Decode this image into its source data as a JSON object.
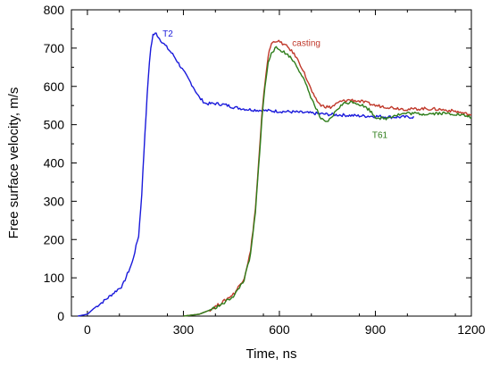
{
  "chart_data": {
    "type": "line",
    "xlabel": "Time, ns",
    "ylabel": "Free surface velocity, m/s",
    "xlim": [
      -50,
      1200
    ],
    "ylim": [
      0,
      800
    ],
    "xticks": [
      0,
      300,
      600,
      900,
      1200
    ],
    "yticks": [
      0,
      100,
      200,
      300,
      400,
      500,
      600,
      700,
      800
    ],
    "grid": false,
    "series": [
      {
        "name": "T2",
        "color": "#1a1adb",
        "points": [
          [
            -30,
            0
          ],
          [
            0,
            5
          ],
          [
            20,
            20
          ],
          [
            60,
            45
          ],
          [
            110,
            80
          ],
          [
            140,
            140
          ],
          [
            160,
            210
          ],
          [
            170,
            320
          ],
          [
            180,
            480
          ],
          [
            190,
            620
          ],
          [
            198,
            700
          ],
          [
            205,
            735
          ],
          [
            215,
            738
          ],
          [
            225,
            725
          ],
          [
            240,
            710
          ],
          [
            270,
            680
          ],
          [
            300,
            640
          ],
          [
            330,
            600
          ],
          [
            350,
            570
          ],
          [
            370,
            555
          ],
          [
            400,
            555
          ],
          [
            430,
            552
          ],
          [
            460,
            545
          ],
          [
            500,
            540
          ],
          [
            550,
            537
          ],
          [
            600,
            535
          ],
          [
            650,
            533
          ],
          [
            700,
            530
          ],
          [
            750,
            527
          ],
          [
            800,
            525
          ],
          [
            850,
            523
          ],
          [
            900,
            522
          ],
          [
            950,
            520
          ],
          [
            1000,
            520
          ],
          [
            1020,
            520
          ]
        ]
      },
      {
        "name": "casting",
        "color": "#c0392b",
        "points": [
          [
            300,
            0
          ],
          [
            350,
            5
          ],
          [
            380,
            15
          ],
          [
            420,
            35
          ],
          [
            460,
            60
          ],
          [
            490,
            100
          ],
          [
            510,
            170
          ],
          [
            525,
            280
          ],
          [
            535,
            400
          ],
          [
            545,
            520
          ],
          [
            555,
            610
          ],
          [
            565,
            680
          ],
          [
            575,
            712
          ],
          [
            590,
            720
          ],
          [
            610,
            712
          ],
          [
            630,
            700
          ],
          [
            650,
            680
          ],
          [
            670,
            650
          ],
          [
            690,
            610
          ],
          [
            710,
            570
          ],
          [
            730,
            550
          ],
          [
            760,
            545
          ],
          [
            790,
            560
          ],
          [
            820,
            565
          ],
          [
            860,
            560
          ],
          [
            900,
            550
          ],
          [
            950,
            545
          ],
          [
            1000,
            540
          ],
          [
            1050,
            542
          ],
          [
            1100,
            540
          ],
          [
            1150,
            535
          ],
          [
            1200,
            525
          ]
        ]
      },
      {
        "name": "T61",
        "color": "#2e7d1a",
        "points": [
          [
            300,
            0
          ],
          [
            350,
            5
          ],
          [
            380,
            15
          ],
          [
            420,
            30
          ],
          [
            460,
            55
          ],
          [
            490,
            95
          ],
          [
            510,
            160
          ],
          [
            525,
            270
          ],
          [
            535,
            390
          ],
          [
            545,
            510
          ],
          [
            555,
            600
          ],
          [
            565,
            660
          ],
          [
            575,
            690
          ],
          [
            590,
            700
          ],
          [
            610,
            692
          ],
          [
            630,
            680
          ],
          [
            650,
            660
          ],
          [
            670,
            630
          ],
          [
            690,
            590
          ],
          [
            710,
            550
          ],
          [
            730,
            515
          ],
          [
            745,
            505
          ],
          [
            760,
            515
          ],
          [
            780,
            540
          ],
          [
            800,
            555
          ],
          [
            830,
            560
          ],
          [
            860,
            550
          ],
          [
            880,
            540
          ],
          [
            900,
            520
          ],
          [
            930,
            515
          ],
          [
            960,
            525
          ],
          [
            1000,
            530
          ],
          [
            1050,
            528
          ],
          [
            1100,
            530
          ],
          [
            1150,
            528
          ],
          [
            1200,
            520
          ]
        ]
      }
    ],
    "annotations": [
      {
        "text": "T2",
        "series": "T2",
        "x": 235,
        "y": 730
      },
      {
        "text": "casting",
        "series": "casting",
        "x": 640,
        "y": 705
      },
      {
        "text": "T61",
        "series": "T61",
        "x": 890,
        "y": 465
      }
    ]
  }
}
